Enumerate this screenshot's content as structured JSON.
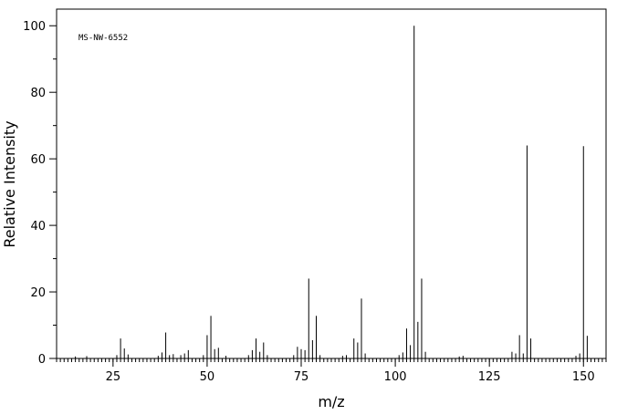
{
  "chart_data": {
    "type": "bar",
    "subtype": "mass-spectrum-stick",
    "annotation": "MS-NW-6552",
    "xlabel": "m/z",
    "ylabel": "Relative Intensity",
    "xlim": [
      10,
      156
    ],
    "ylim": [
      0,
      105
    ],
    "x_major_ticks": [
      25,
      50,
      75,
      100,
      125,
      150
    ],
    "y_major_ticks": [
      0,
      20,
      40,
      60,
      80,
      100
    ],
    "grid": false,
    "legend": "none",
    "bar_color": "#000000",
    "peaks": [
      {
        "mz": 15,
        "intensity": 0.6
      },
      {
        "mz": 18,
        "intensity": 0.7
      },
      {
        "mz": 26,
        "intensity": 1.0
      },
      {
        "mz": 27,
        "intensity": 6.0
      },
      {
        "mz": 28,
        "intensity": 3.0
      },
      {
        "mz": 29,
        "intensity": 1.2
      },
      {
        "mz": 37,
        "intensity": 0.8
      },
      {
        "mz": 38,
        "intensity": 1.8
      },
      {
        "mz": 39,
        "intensity": 7.8
      },
      {
        "mz": 40,
        "intensity": 1.0
      },
      {
        "mz": 41,
        "intensity": 1.3
      },
      {
        "mz": 43,
        "intensity": 1.0
      },
      {
        "mz": 44,
        "intensity": 1.5
      },
      {
        "mz": 45,
        "intensity": 2.5
      },
      {
        "mz": 49,
        "intensity": 1.0
      },
      {
        "mz": 50,
        "intensity": 7.0
      },
      {
        "mz": 51,
        "intensity": 12.8
      },
      {
        "mz": 52,
        "intensity": 2.8
      },
      {
        "mz": 53,
        "intensity": 3.2
      },
      {
        "mz": 55,
        "intensity": 0.8
      },
      {
        "mz": 61,
        "intensity": 1.0
      },
      {
        "mz": 62,
        "intensity": 2.5
      },
      {
        "mz": 63,
        "intensity": 6.0
      },
      {
        "mz": 64,
        "intensity": 2.0
      },
      {
        "mz": 65,
        "intensity": 4.8
      },
      {
        "mz": 66,
        "intensity": 1.0
      },
      {
        "mz": 73,
        "intensity": 1.0
      },
      {
        "mz": 74,
        "intensity": 3.5
      },
      {
        "mz": 75,
        "intensity": 2.8
      },
      {
        "mz": 76,
        "intensity": 2.5
      },
      {
        "mz": 77,
        "intensity": 24.0
      },
      {
        "mz": 78,
        "intensity": 5.5
      },
      {
        "mz": 79,
        "intensity": 12.8
      },
      {
        "mz": 80,
        "intensity": 1.0
      },
      {
        "mz": 86,
        "intensity": 0.8
      },
      {
        "mz": 87,
        "intensity": 1.0
      },
      {
        "mz": 89,
        "intensity": 6.0
      },
      {
        "mz": 90,
        "intensity": 4.8
      },
      {
        "mz": 91,
        "intensity": 18.0
      },
      {
        "mz": 92,
        "intensity": 1.5
      },
      {
        "mz": 101,
        "intensity": 1.0
      },
      {
        "mz": 102,
        "intensity": 1.8
      },
      {
        "mz": 103,
        "intensity": 9.0
      },
      {
        "mz": 104,
        "intensity": 4.0
      },
      {
        "mz": 105,
        "intensity": 100.0
      },
      {
        "mz": 106,
        "intensity": 11.0
      },
      {
        "mz": 107,
        "intensity": 24.0
      },
      {
        "mz": 108,
        "intensity": 2.0
      },
      {
        "mz": 117,
        "intensity": 0.6
      },
      {
        "mz": 118,
        "intensity": 0.8
      },
      {
        "mz": 131,
        "intensity": 2.0
      },
      {
        "mz": 132,
        "intensity": 1.5
      },
      {
        "mz": 133,
        "intensity": 7.0
      },
      {
        "mz": 134,
        "intensity": 1.5
      },
      {
        "mz": 135,
        "intensity": 64.0
      },
      {
        "mz": 136,
        "intensity": 6.0
      },
      {
        "mz": 148,
        "intensity": 0.8
      },
      {
        "mz": 149,
        "intensity": 1.5
      },
      {
        "mz": 150,
        "intensity": 63.8
      },
      {
        "mz": 151,
        "intensity": 6.8
      }
    ]
  }
}
